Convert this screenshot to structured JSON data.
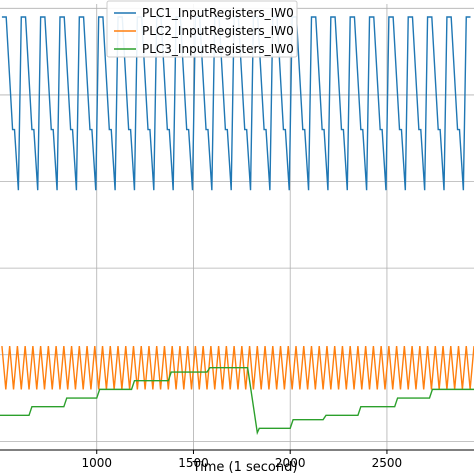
{
  "chart_data": {
    "type": "line",
    "xlabel": "Time (1 second)",
    "ylabel": "",
    "title": "",
    "x_ticks": [
      1000,
      1500,
      2000,
      2500
    ],
    "xlim": [
      500,
      2950
    ],
    "ylim": [
      -0.2,
      10.1
    ],
    "grid": true,
    "legend": {
      "placement": "top-center",
      "entries": [
        "PLC1_InputRegisters_IW0",
        "PLC2_InputRegisters_IW0",
        "PLC3_InputRegisters_IW0"
      ]
    },
    "series": [
      {
        "name": "PLC1_InputRegisters_IW0",
        "color": "#1f77b4",
        "pattern": "sawtooth",
        "period": 100,
        "high": 9.8,
        "mid": 7.2,
        "low": 5.8,
        "x_start": 510,
        "x_end": 2950
      },
      {
        "name": "PLC2_InputRegisters_IW0",
        "color": "#ff7f0e",
        "pattern": "triangle",
        "period": 40,
        "high": 2.2,
        "low": 1.2,
        "x_start": 510,
        "x_end": 2950
      },
      {
        "name": "PLC3_InputRegisters_IW0",
        "color": "#2ca02c",
        "pattern": "step",
        "points": [
          [
            500,
            0.6
          ],
          [
            650,
            0.6
          ],
          [
            665,
            0.8
          ],
          [
            830,
            0.8
          ],
          [
            845,
            1.0
          ],
          [
            1000,
            1.0
          ],
          [
            1015,
            1.2
          ],
          [
            1180,
            1.2
          ],
          [
            1195,
            1.4
          ],
          [
            1370,
            1.4
          ],
          [
            1385,
            1.6
          ],
          [
            1570,
            1.6
          ],
          [
            1585,
            1.7
          ],
          [
            1780,
            1.7
          ],
          [
            1830,
            0.2
          ],
          [
            1840,
            0.3
          ],
          [
            2000,
            0.3
          ],
          [
            2015,
            0.5
          ],
          [
            2170,
            0.5
          ],
          [
            2185,
            0.6
          ],
          [
            2350,
            0.6
          ],
          [
            2365,
            0.8
          ],
          [
            2540,
            0.8
          ],
          [
            2555,
            1.0
          ],
          [
            2720,
            1.0
          ],
          [
            2735,
            1.2
          ],
          [
            2950,
            1.2
          ]
        ]
      }
    ]
  }
}
